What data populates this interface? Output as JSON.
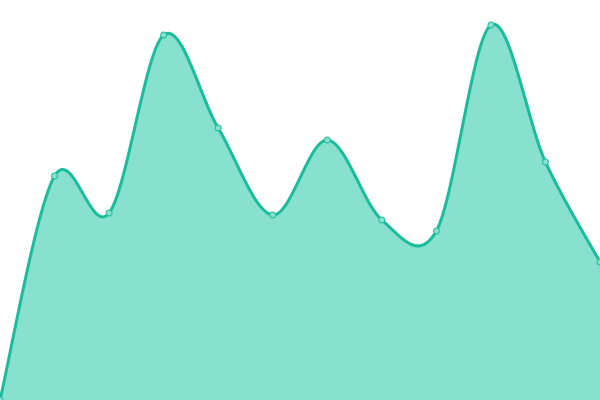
{
  "chart_data": {
    "type": "area",
    "x": [
      0,
      1,
      2,
      3,
      4,
      5,
      6,
      7,
      8,
      9,
      10,
      11
    ],
    "values": [
      0,
      224,
      187,
      365,
      272,
      185,
      260,
      180,
      169,
      375,
      238,
      138
    ],
    "ylim": [
      0,
      400
    ],
    "grid": false,
    "legend": "none",
    "curve": "smooth",
    "colors": {
      "line": "#1abc9c",
      "fill": "#88e0cf",
      "point_fill": "#88e0cf",
      "point_stroke": "#1abc9c"
    }
  }
}
